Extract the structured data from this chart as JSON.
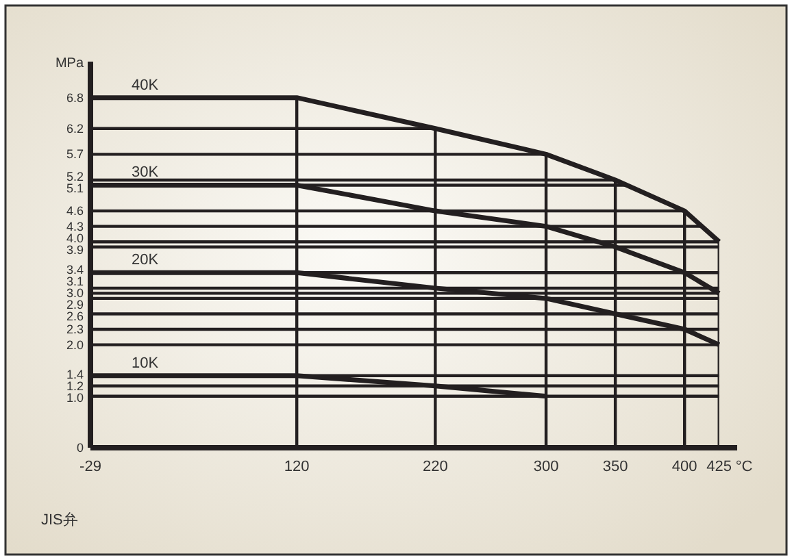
{
  "chart_data": {
    "type": "line",
    "xlabel": "°C",
    "ylabel": "MPa",
    "xlim": [
      -29,
      438
    ],
    "ylim": [
      0,
      7.5
    ],
    "xticks": [
      -29,
      120,
      220,
      300,
      350,
      400,
      425
    ],
    "yticks": [
      0,
      {
        "value": 1,
        "label": "1.0"
      },
      1.2,
      1.4,
      {
        "value": 2,
        "label": "2.0"
      },
      2.3,
      2.6,
      2.9,
      {
        "value": 3,
        "label": "3.0"
      },
      3.1,
      3.4,
      3.9,
      {
        "value": 4,
        "label": "4.0"
      },
      4.3,
      4.6,
      5.1,
      5.2,
      5.7,
      6.2,
      6.8
    ],
    "grid": true,
    "series": [
      {
        "name": "40K",
        "color": "#231f20",
        "x": [
          -29,
          120,
          220,
          300,
          350,
          400,
          425
        ],
        "values": [
          6.8,
          6.8,
          6.2,
          5.7,
          5.2,
          4.6,
          4.0
        ]
      },
      {
        "name": "30K",
        "color": "#231f20",
        "x": [
          -29,
          120,
          220,
          300,
          350,
          400,
          425
        ],
        "values": [
          5.1,
          5.1,
          4.6,
          4.3,
          3.9,
          3.4,
          3.0
        ]
      },
      {
        "name": "20K",
        "color": "#231f20",
        "x": [
          -29,
          120,
          220,
          300,
          350,
          400,
          425
        ],
        "values": [
          3.4,
          3.4,
          3.1,
          2.9,
          2.6,
          2.3,
          2.0
        ]
      },
      {
        "name": "10K",
        "color": "#231f20",
        "x": [
          -29,
          120,
          220,
          300
        ],
        "values": [
          1.4,
          1.4,
          1.2,
          1.0
        ]
      }
    ],
    "annotations": [
      "JIS弁"
    ]
  }
}
